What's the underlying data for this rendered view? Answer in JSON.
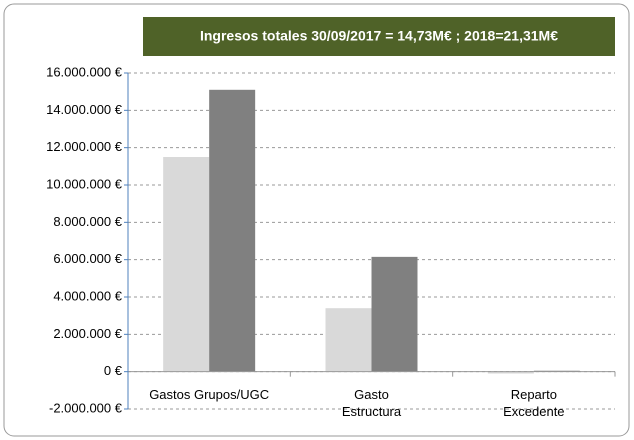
{
  "chart_data": {
    "type": "bar",
    "title": "Ingresos totales 30/09/2017  = 14,73M€ ; 2018=21,31M€",
    "categories": [
      "Gastos Grupos/UGC",
      "Gasto Estructura",
      "Reparto Excedente"
    ],
    "series": [
      {
        "color": "#d9d9d9",
        "values": [
          11500000,
          3400000,
          -100000
        ]
      },
      {
        "color": "#808080",
        "values": [
          15100000,
          6150000,
          50000
        ]
      }
    ],
    "ylim": [
      -2000000,
      16000000
    ],
    "yticks": [
      {
        "value": -2000000,
        "label": "-2.000.000 €"
      },
      {
        "value": 0,
        "label": "0 €"
      },
      {
        "value": 2000000,
        "label": "2.000.000 €"
      },
      {
        "value": 4000000,
        "label": "4.000.000 €"
      },
      {
        "value": 6000000,
        "label": "6.000.000 €"
      },
      {
        "value": 8000000,
        "label": "8.000.000 €"
      },
      {
        "value": 10000000,
        "label": "10.000.000 €"
      },
      {
        "value": 12000000,
        "label": "12.000.000 €"
      },
      {
        "value": 14000000,
        "label": "14.000.000 €"
      },
      {
        "value": 16000000,
        "label": "16.000.000 €"
      }
    ],
    "grid": true
  }
}
